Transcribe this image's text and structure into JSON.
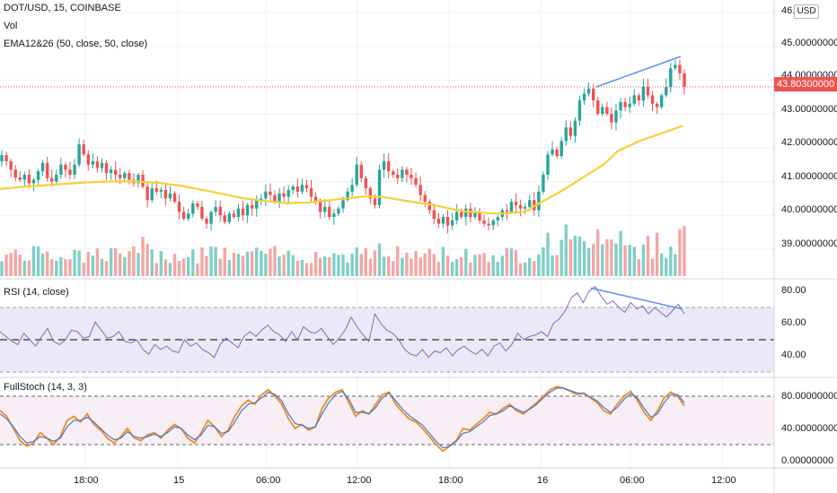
{
  "header": {
    "symbol_line": "DOT/USD, 15, COINBASE",
    "vol_label": "Vol",
    "ema_label": "EMA12&26 (50, close, 50, close)",
    "rsi_label": "RSI (14, close)",
    "stoch_label": "FullStoch (14, 3, 3)",
    "currency_badge": "USD"
  },
  "colors": {
    "up": "#26a69a",
    "down": "#ef5350",
    "vol_up": "#7fcfc6",
    "vol_down": "#f4a6a4",
    "ema": "#f7d038",
    "rsi_line": "#7b6fbf",
    "rsi_band": "#ece8f7",
    "stoch_k": "#3f7bd6",
    "stoch_d": "#f28c1e",
    "stoch_band": "#f7eef6",
    "trendline": "#5b8ff0",
    "last_price": "#ef5350",
    "grid": "#eef0f3",
    "axis_text": "#131722"
  },
  "chart_data": {
    "type": "candlestick",
    "symbol": "DOT/USD",
    "interval": "15",
    "exchange": "COINBASE",
    "last_price": "43.80300000",
    "price_axis": {
      "ticks": [
        "46.0",
        "45.00000000",
        "44.00000000",
        "43.00000000",
        "42.00000000",
        "41.00000000",
        "40.00000000",
        "39.00000000"
      ],
      "ylim": [
        38.2,
        46.1
      ]
    },
    "rsi_axis": {
      "ticks": [
        "80.00",
        "60.00",
        "40.00"
      ],
      "ylim": [
        31,
        88
      ],
      "band": [
        30,
        70
      ],
      "mid": 50
    },
    "stoch_axis": {
      "ticks": [
        "80.00000000",
        "40.00000000",
        "0.00000000"
      ],
      "ylim": [
        -8,
        96
      ],
      "upper": 80,
      "lower": 20
    },
    "time_axis": [
      "18:00",
      "15",
      "06:00",
      "12:00",
      "18:00",
      "16",
      "06:00",
      "12:00"
    ],
    "close_series": [
      41.78,
      41.6,
      41.35,
      41.12,
      41.05,
      41.2,
      40.95,
      41.05,
      41.3,
      41.55,
      41.1,
      41.0,
      41.2,
      41.5,
      41.35,
      41.2,
      41.5,
      42.1,
      41.8,
      41.5,
      41.6,
      41.4,
      41.55,
      41.25,
      41.35,
      41.2,
      41.1,
      41.25,
      41.05,
      40.95,
      41.2,
      40.85,
      40.45,
      40.8,
      40.7,
      40.75,
      40.5,
      40.65,
      40.4,
      40.1,
      39.9,
      40.05,
      40.35,
      40.25,
      39.9,
      39.75,
      40.1,
      40.25,
      40.0,
      39.8,
      40.05,
      39.95,
      40.2,
      40.0,
      40.3,
      40.2,
      40.45,
      40.5,
      40.7,
      40.6,
      40.4,
      40.65,
      40.55,
      40.75,
      40.85,
      40.7,
      40.9,
      40.8,
      40.55,
      40.4,
      40.1,
      40.25,
      39.95,
      40.05,
      40.2,
      40.45,
      40.7,
      40.9,
      41.5,
      41.1,
      40.8,
      40.5,
      40.3,
      41.35,
      41.6,
      41.3,
      41.2,
      41.1,
      41.35,
      41.2,
      41.1,
      40.9,
      40.6,
      40.4,
      40.15,
      39.9,
      39.75,
      39.95,
      39.7,
      39.85,
      40.1,
      39.95,
      40.2,
      39.95,
      40.1,
      39.85,
      39.75,
      39.7,
      39.85,
      39.95,
      40.15,
      40.1,
      40.4,
      40.3,
      40.2,
      40.25,
      40.45,
      40.15,
      40.7,
      41.2,
      41.8,
      41.95,
      41.75,
      42.2,
      42.6,
      42.35,
      42.8,
      43.4,
      43.6,
      43.75,
      43.4,
      43.0,
      43.2,
      43.0,
      42.75,
      43.1,
      43.35,
      43.2,
      43.3,
      43.55,
      43.4,
      43.8,
      43.55,
      43.3,
      43.2,
      43.55,
      43.8,
      44.35,
      44.45,
      44.2,
      43.8
    ],
    "ema_series": [
      40.78,
      40.84,
      40.9,
      40.96,
      41.0,
      41.0,
      40.96,
      40.88,
      40.76,
      40.63,
      40.5,
      40.42,
      40.36,
      40.38,
      40.45,
      40.52,
      40.56,
      40.55,
      40.48,
      40.38,
      40.28,
      40.18,
      40.11,
      40.06,
      40.05,
      40.1,
      40.35,
      40.7,
      41.1,
      41.5,
      41.9,
      42.2,
      42.42,
      42.65
    ],
    "ema_x_fraction": [
      0,
      0.03,
      0.07,
      0.11,
      0.15,
      0.19,
      0.22,
      0.25,
      0.28,
      0.31,
      0.34,
      0.37,
      0.4,
      0.43,
      0.46,
      0.49,
      0.51,
      0.53,
      0.55,
      0.58,
      0.61,
      0.63,
      0.65,
      0.68,
      0.7,
      0.73,
      0.75,
      0.78,
      0.81,
      0.84,
      0.86,
      0.89,
      0.92,
      0.95
    ],
    "rsi_series": [
      55,
      52,
      49,
      47,
      54,
      50,
      46,
      52,
      57,
      49,
      47,
      50,
      56,
      55,
      51,
      52,
      61,
      56,
      51,
      52,
      55,
      49,
      48,
      50,
      44,
      41,
      47,
      44,
      46,
      43,
      42,
      50,
      46,
      48,
      44,
      42,
      39,
      47,
      51,
      48,
      45,
      52,
      55,
      52,
      56,
      59,
      55,
      53,
      49,
      55,
      50,
      58,
      55,
      54,
      57,
      52,
      47,
      51,
      56,
      64,
      58,
      53,
      49,
      66,
      60,
      56,
      54,
      50,
      44,
      41,
      40,
      44,
      39,
      43,
      42,
      45,
      40,
      44,
      46,
      43,
      41,
      44,
      40,
      46,
      48,
      43,
      47,
      54,
      50,
      52,
      53,
      55,
      52,
      60,
      63,
      68,
      76,
      79,
      73,
      80,
      83,
      77,
      72,
      74,
      70,
      67,
      73,
      69,
      71,
      66,
      70,
      67,
      64,
      68,
      72,
      66
    ],
    "stoch_k": [
      62,
      55,
      40,
      25,
      18,
      22,
      35,
      28,
      20,
      30,
      50,
      55,
      48,
      58,
      45,
      38,
      28,
      22,
      30,
      40,
      28,
      25,
      32,
      35,
      28,
      38,
      45,
      40,
      28,
      22,
      35,
      50,
      42,
      30,
      38,
      55,
      68,
      75,
      70,
      82,
      88,
      80,
      70,
      52,
      40,
      45,
      38,
      42,
      65,
      78,
      85,
      88,
      72,
      55,
      62,
      58,
      70,
      82,
      85,
      70,
      60,
      52,
      48,
      40,
      30,
      20,
      12,
      18,
      25,
      40,
      38,
      45,
      52,
      60,
      58,
      65,
      70,
      62,
      58,
      65,
      72,
      80,
      88,
      92,
      90,
      86,
      82,
      84,
      78,
      72,
      62,
      58,
      70,
      80,
      86,
      75,
      60,
      50,
      62,
      78,
      85,
      80,
      68
    ],
    "stoch_d": [
      58,
      52,
      42,
      30,
      22,
      24,
      30,
      28,
      24,
      28,
      42,
      50,
      50,
      54,
      48,
      40,
      32,
      26,
      28,
      36,
      30,
      28,
      30,
      33,
      30,
      35,
      42,
      40,
      32,
      26,
      32,
      44,
      42,
      34,
      36,
      48,
      62,
      70,
      72,
      78,
      85,
      82,
      74,
      58,
      46,
      44,
      40,
      42,
      58,
      72,
      82,
      86,
      76,
      60,
      60,
      58,
      66,
      78,
      84,
      74,
      64,
      56,
      50,
      44,
      34,
      24,
      16,
      18,
      24,
      34,
      36,
      42,
      48,
      56,
      58,
      62,
      68,
      64,
      60,
      64,
      70,
      78,
      85,
      90,
      90,
      87,
      84,
      83,
      79,
      74,
      66,
      60,
      66,
      76,
      83,
      78,
      65,
      54,
      58,
      72,
      82,
      82,
      72
    ]
  }
}
